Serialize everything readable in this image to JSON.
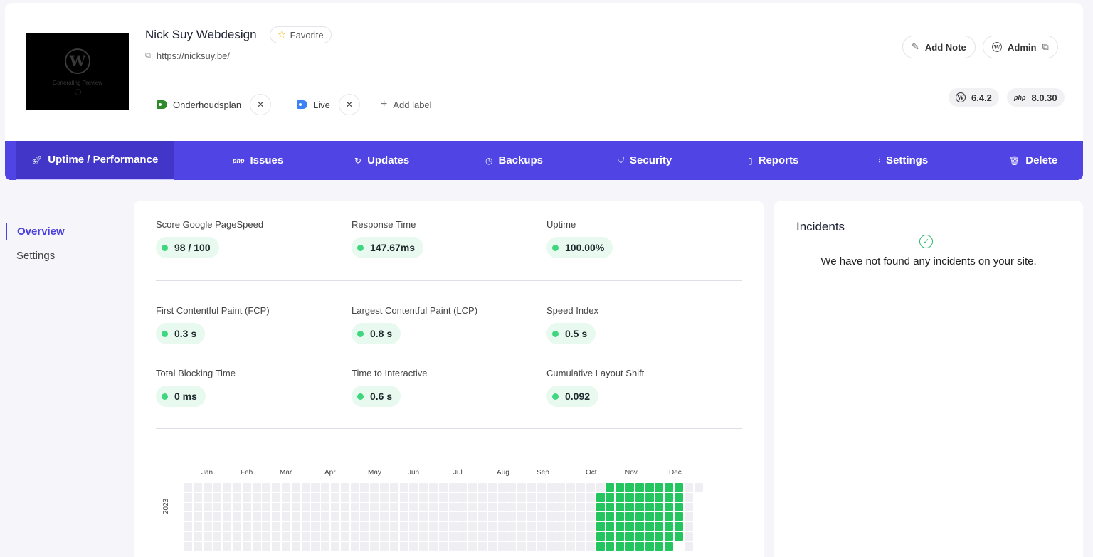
{
  "site": {
    "title": "Nick Suy Webdesign",
    "favorite_label": "Favorite",
    "url": "https://nicksuy.be/",
    "preview_text": "Generating Preview"
  },
  "labels": [
    {
      "text": "Onderhoudsplan",
      "color": "#2f8a2b"
    },
    {
      "text": "Live",
      "color": "#3b82f6"
    }
  ],
  "add_label": "Add label",
  "actions": {
    "add_note": "Add Note",
    "admin": "Admin"
  },
  "versions": {
    "wordpress": "6.4.2",
    "php_icon": "php",
    "php": "8.0.30"
  },
  "nav": [
    {
      "label": "Uptime / Performance",
      "icon": "rocket-icon",
      "active": true
    },
    {
      "label": "Issues",
      "icon": "php-icon"
    },
    {
      "label": "Updates",
      "icon": "refresh-icon"
    },
    {
      "label": "Backups",
      "icon": "clock-icon"
    },
    {
      "label": "Security",
      "icon": "shield-icon"
    },
    {
      "label": "Reports",
      "icon": "document-icon"
    },
    {
      "label": "Settings",
      "icon": "sliders-icon"
    },
    {
      "label": "Delete",
      "icon": "trash-icon"
    }
  ],
  "subnav": {
    "overview": "Overview",
    "settings": "Settings"
  },
  "metrics": [
    {
      "label": "Score Google PageSpeed",
      "value": "98 / 100"
    },
    {
      "label": "Response Time",
      "value": "147.67ms"
    },
    {
      "label": "Uptime",
      "value": "100.00%"
    },
    {
      "label": "First Contentful Paint (FCP)",
      "value": "0.3 s"
    },
    {
      "label": "Largest Contentful Paint (LCP)",
      "value": "0.8 s"
    },
    {
      "label": "Speed Index",
      "value": "0.5 s"
    },
    {
      "label": "Total Blocking Time",
      "value": "0 ms"
    },
    {
      "label": "Time to Interactive",
      "value": "0.6 s"
    },
    {
      "label": "Cumulative Layout Shift",
      "value": "0.092"
    }
  ],
  "calendar": {
    "year": "2023",
    "months": [
      "Jan",
      "Feb",
      "Mar",
      "Apr",
      "May",
      "Jun",
      "Jul",
      "Aug",
      "Sep",
      "Oct",
      "Nov",
      "Dec"
    ],
    "uptime_color": "#22c55e",
    "empty_color": "#efeff3"
  },
  "incidents": {
    "title": "Incidents",
    "message": "We have not found any incidents on your site."
  }
}
